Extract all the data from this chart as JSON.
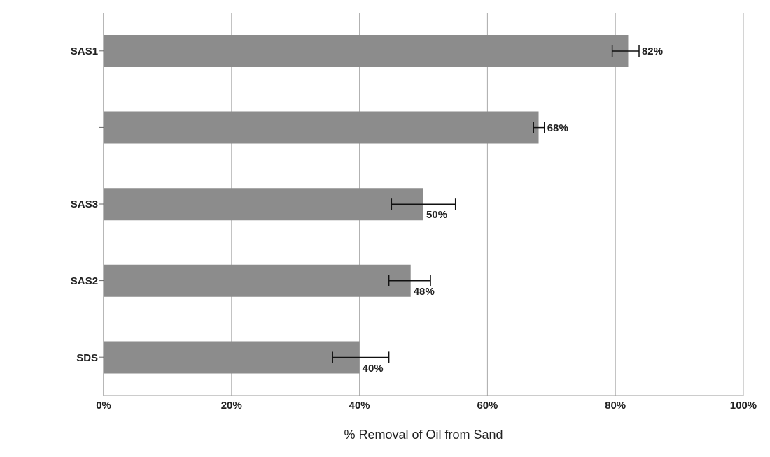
{
  "chart_data": {
    "type": "bar",
    "orientation": "horizontal",
    "xlabel": "% Removal of Oil from Sand",
    "categories": [
      "SAS1",
      null,
      "SAS3",
      "SAS2",
      "SDS"
    ],
    "values": [
      82,
      68,
      50,
      48,
      40
    ],
    "errors": [
      [
        79.5,
        83.7
      ],
      [
        67.2,
        68.9
      ],
      [
        45,
        55
      ],
      [
        44.6,
        51.1
      ],
      [
        35.8,
        44.6
      ]
    ],
    "value_labels": [
      "82%",
      "68%",
      "50%",
      "48%",
      "40%"
    ],
    "color": "#8c8c8c",
    "xlim": [
      0,
      100
    ],
    "xticks": [
      {
        "value": 0,
        "label": "0%"
      },
      {
        "value": 20,
        "label": "20%"
      },
      {
        "value": 40,
        "label": "40%"
      },
      {
        "value": 60,
        "label": "60%"
      },
      {
        "value": 80,
        "label": "80%"
      },
      {
        "value": 100,
        "label": "100%"
      }
    ],
    "grid": "x",
    "legend": false
  }
}
